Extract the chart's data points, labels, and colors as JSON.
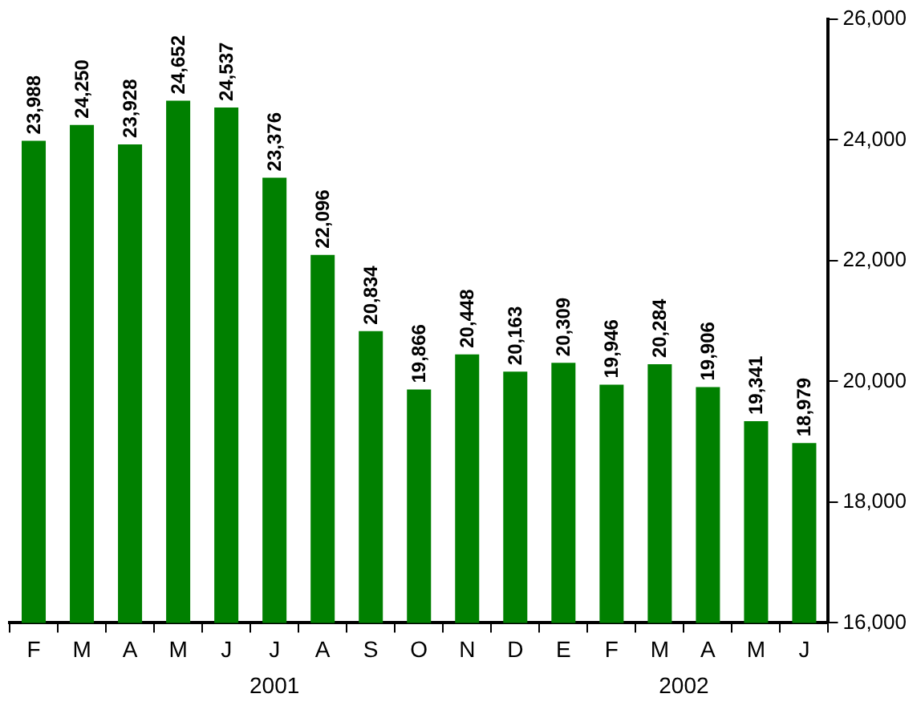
{
  "chart_data": {
    "type": "bar",
    "categories": [
      "F",
      "M",
      "A",
      "M",
      "J",
      "J",
      "A",
      "S",
      "O",
      "N",
      "D",
      "E",
      "F",
      "M",
      "A",
      "M",
      "J"
    ],
    "series": [
      {
        "color": "#008000",
        "values": [
          23988,
          24250,
          23928,
          24652,
          24537,
          23376,
          22096,
          20834,
          19866,
          20448,
          20163,
          20309,
          19946,
          20284,
          19906,
          19341,
          18979
        ],
        "value_labels": [
          "23,988",
          "24,250",
          "23,928",
          "24,652",
          "24,537",
          "23,376",
          "22,096",
          "20,834",
          "19,866",
          "20,448",
          "20,163",
          "20,309",
          "19,946",
          "20,284",
          "19,906",
          "19,341",
          "18,979"
        ]
      }
    ],
    "ylim": [
      16000,
      26000
    ],
    "yticks": [
      {
        "value": 16000,
        "label": "16,000"
      },
      {
        "value": 18000,
        "label": "18,000"
      },
      {
        "value": 20000,
        "label": "20,000"
      },
      {
        "value": 22000,
        "label": "22,000"
      },
      {
        "value": 24000,
        "label": "24,000"
      },
      {
        "value": 26000,
        "label": "26,000"
      }
    ],
    "grid": false,
    "legend": false,
    "annotations": [
      "2001",
      "2002"
    ]
  }
}
